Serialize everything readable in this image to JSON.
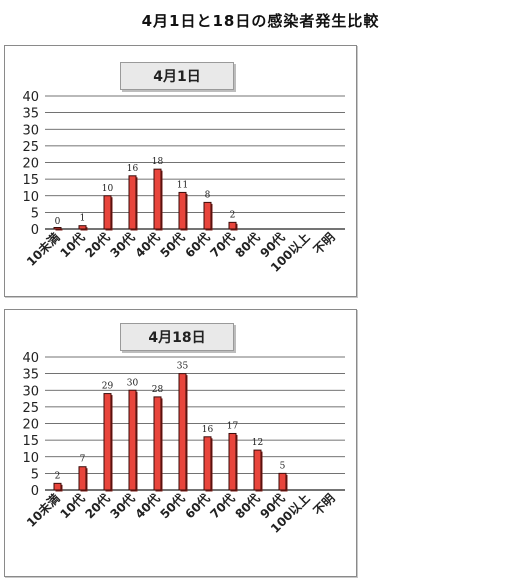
{
  "page_title": "4月1日と18日の感染者発生比較",
  "chart_data": [
    {
      "type": "bar",
      "title": "4月1日",
      "categories": [
        "10未満",
        "10代",
        "20代",
        "30代",
        "40代",
        "50代",
        "60代",
        "70代",
        "80代",
        "90代",
        "100以上",
        "不明"
      ],
      "values": [
        0,
        1,
        10,
        16,
        18,
        11,
        8,
        2,
        null,
        null,
        null,
        null
      ],
      "data_labels": [
        "0",
        "1",
        "10",
        "16",
        "18",
        "11",
        "8",
        "2",
        "",
        "",
        "",
        ""
      ],
      "ylim": [
        0,
        40
      ],
      "yticks": [
        0,
        5,
        10,
        15,
        20,
        25,
        30,
        35,
        40
      ],
      "ytick_labels": [
        "0",
        "5",
        "10",
        "15",
        "20",
        "25",
        "30",
        "35",
        "40"
      ],
      "grid": true,
      "bar_color": "#e8453c",
      "bar_edge_color": "#3a0c0a"
    },
    {
      "type": "bar",
      "title": "4月18日",
      "categories": [
        "10未満",
        "10代",
        "20代",
        "30代",
        "40代",
        "50代",
        "60代",
        "70代",
        "80代",
        "90代",
        "100以上",
        "不明"
      ],
      "values": [
        2,
        7,
        29,
        30,
        28,
        35,
        16,
        17,
        12,
        5,
        null,
        null
      ],
      "data_labels": [
        "2",
        "7",
        "29",
        "30",
        "28",
        "35",
        "16",
        "17",
        "12",
        "5",
        "",
        ""
      ],
      "ylim": [
        0,
        40
      ],
      "yticks": [
        0,
        5,
        10,
        15,
        20,
        25,
        30,
        35,
        40
      ],
      "ytick_labels": [
        "0",
        "5",
        "10",
        "15",
        "20",
        "25",
        "30",
        "35",
        "40"
      ],
      "grid": true,
      "bar_color": "#e8453c",
      "bar_edge_color": "#3a0c0a"
    }
  ]
}
